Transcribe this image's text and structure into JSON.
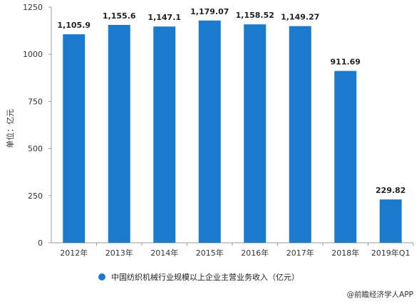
{
  "chart_data": {
    "type": "bar",
    "categories": [
      "2012年",
      "2013年",
      "2014年",
      "2015年",
      "2016年",
      "2017年",
      "2018年",
      "2019年Q1"
    ],
    "series": [
      {
        "name": "中国纺织机械行业规模以上企业主营业务收入（亿元）",
        "values": [
          1105.9,
          1155.6,
          1147.1,
          1179.07,
          1158.52,
          1149.27,
          911.69,
          229.82
        ],
        "labels": [
          "1,105.9",
          "1,155.6",
          "1,147.1",
          "1,179.07",
          "1,158.52",
          "1,149.27",
          "911.69",
          "229.82"
        ]
      }
    ],
    "yticks": [
      "0",
      "250",
      "500",
      "750",
      "1000",
      "1250"
    ],
    "ylim": [
      0,
      1250
    ],
    "ylabel": "单位：亿元",
    "xlabel": "",
    "grid": false,
    "legend_position": "bottom"
  },
  "colors": {
    "bar": "#1a7acd",
    "axis": "#999999"
  },
  "legend": {
    "label": "中国纺织机械行业规模以上企业主营业务收入（亿元）"
  },
  "source": {
    "icon": "copyright-icon",
    "text": "@前瞻经济学人APP"
  }
}
